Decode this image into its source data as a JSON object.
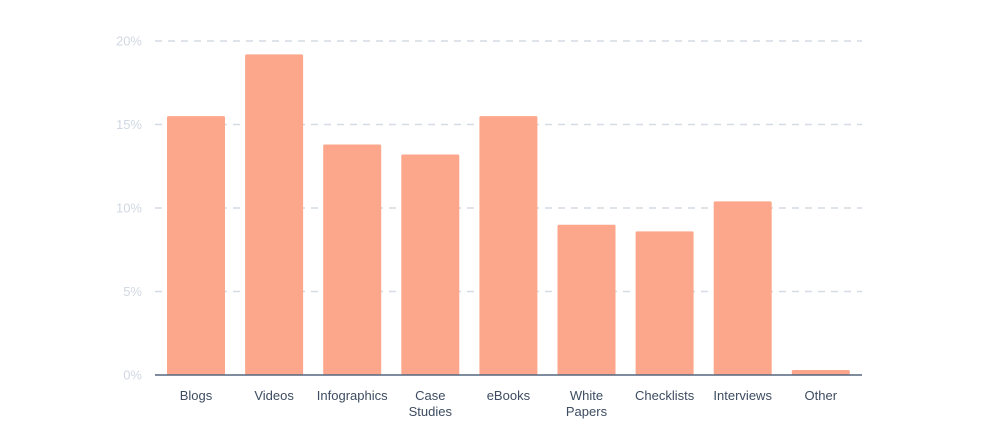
{
  "chart_data": {
    "type": "bar",
    "title": "",
    "xlabel": "",
    "ylabel": "",
    "ylim": [
      0,
      20
    ],
    "yticks": [
      "0%",
      "5%",
      "10%",
      "15%",
      "20%"
    ],
    "grid": true,
    "categories": [
      "Blogs",
      "Videos",
      "Infographics",
      "Case Studies",
      "eBooks",
      "White Papers",
      "Checklists",
      "Interviews",
      "Other"
    ],
    "values": [
      15.5,
      19.2,
      13.8,
      13.2,
      15.5,
      9.0,
      8.6,
      10.4,
      0.3
    ],
    "colors": {
      "bar": "#fca78b",
      "grid": "#d4dbe4",
      "axis": "#55677f",
      "y_tick_text": "#d0d8e2",
      "x_tick_text": "#3d4c60"
    }
  }
}
